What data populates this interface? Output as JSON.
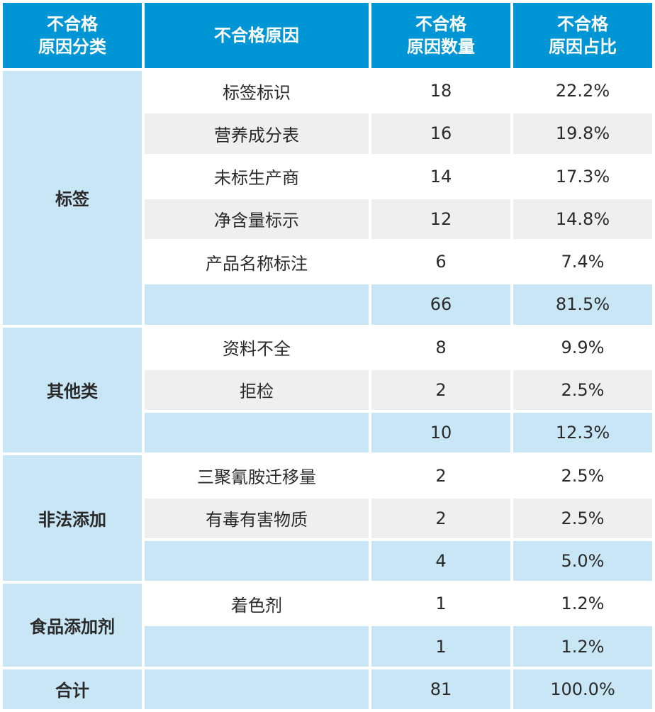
{
  "headers": {
    "category": [
      "不合格",
      "原因分类"
    ],
    "reason": "不合格原因",
    "count": [
      "不合格",
      "原因数量"
    ],
    "share": [
      "不合格",
      "原因占比"
    ]
  },
  "groups": [
    {
      "category": "标签",
      "rows": [
        {
          "reason": "标签标识",
          "count": "18",
          "share": "22.2%"
        },
        {
          "reason": "营养成分表",
          "count": "16",
          "share": "19.8%"
        },
        {
          "reason": "未标生产商",
          "count": "14",
          "share": "17.3%"
        },
        {
          "reason": "净含量标示",
          "count": "12",
          "share": "14.8%"
        },
        {
          "reason": "产品名称标注",
          "count": "6",
          "share": "7.4%"
        }
      ],
      "subtotal": {
        "count": "66",
        "share": "81.5%"
      }
    },
    {
      "category": "其他类",
      "rows": [
        {
          "reason": "资料不全",
          "count": "8",
          "share": "9.9%"
        },
        {
          "reason": "拒检",
          "count": "2",
          "share": "2.5%"
        }
      ],
      "subtotal": {
        "count": "10",
        "share": "12.3%"
      }
    },
    {
      "category": "非法添加",
      "rows": [
        {
          "reason": "三聚氰胺迁移量",
          "count": "2",
          "share": "2.5%"
        },
        {
          "reason": "有毒有害物质",
          "count": "2",
          "share": "2.5%"
        }
      ],
      "subtotal": {
        "count": "4",
        "share": "5.0%"
      }
    },
    {
      "category": "食品添加剂",
      "rows": [
        {
          "reason": "着色剂",
          "count": "1",
          "share": "1.2%"
        }
      ],
      "subtotal": {
        "count": "1",
        "share": "1.2%"
      }
    }
  ],
  "total": {
    "label": "合计",
    "count": "81",
    "share": "100.0%"
  },
  "colors": {
    "header": "#0096d5",
    "category": "#c8e6f5",
    "stripe": "#efefef"
  }
}
